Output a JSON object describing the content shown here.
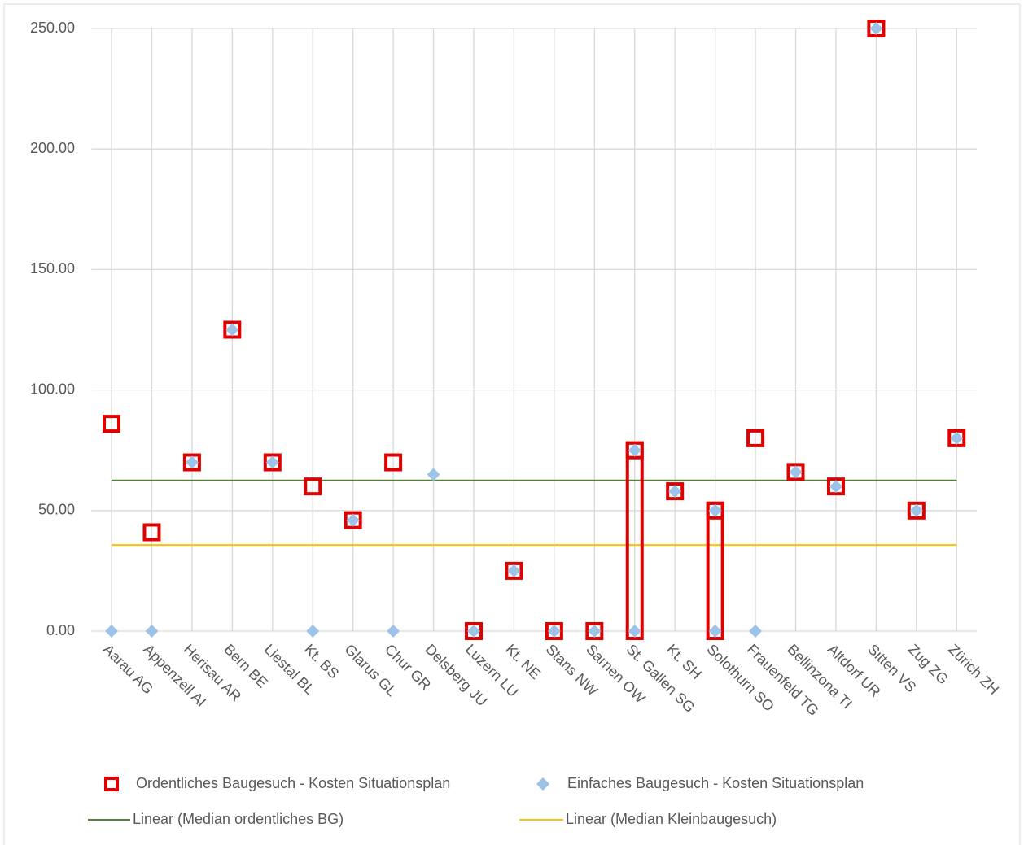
{
  "chart_data": {
    "type": "scatter",
    "categories": [
      "Aarau AG",
      "Appenzell AI",
      "Herisau AR",
      "Bern BE",
      "Liestal BL",
      "Kt. BS",
      "Glarus GL",
      "Chur GR",
      "Delsberg JU",
      "Luzern LU",
      "Kt. NE",
      "Stans NW",
      "Sarnen OW",
      "St. Gallen SG",
      "Kt. SH",
      "Solothurn SO",
      "Frauenfeld TG",
      "Bellinzona TI",
      "Altdorf UR",
      "Sitten VS",
      "Zug ZG",
      "Zürich ZH"
    ],
    "series": [
      {
        "name": "Ordentliches Baugesuch - Kosten Situationsplan",
        "color": "#e00000",
        "marker": "square",
        "values": [
          86,
          41,
          70,
          125,
          70,
          60,
          46,
          70,
          null,
          0,
          25,
          0,
          0,
          75,
          58,
          50,
          80,
          66,
          60,
          250,
          50,
          80
        ]
      },
      {
        "name": "Einfaches Baugesuch - Kosten Situationsplan",
        "color": "#9dc3e6",
        "marker": "diamond",
        "values": [
          0,
          0,
          70,
          125,
          70,
          0,
          46,
          0,
          65,
          0,
          25,
          0,
          0,
          75,
          58,
          50,
          0,
          66,
          60,
          250,
          50,
          80
        ]
      }
    ],
    "highlight_ranges": [
      {
        "category": "St. Gallen SG",
        "low": 0,
        "high": 75
      },
      {
        "category": "Solothurn SO",
        "low": 0,
        "high": 50
      }
    ],
    "reference_lines": [
      {
        "name": "Linear (Median ordentliches BG)",
        "color": "#548235",
        "value": 62.5
      },
      {
        "name": "Linear (Median Kleinbaugesuch)",
        "color": "#ffc000",
        "value": 35.7
      }
    ],
    "ylim": [
      0,
      250
    ],
    "yticks": [
      {
        "value": 0,
        "label": "0.00"
      },
      {
        "value": 50,
        "label": "50.00"
      },
      {
        "value": 100,
        "label": "100.00"
      },
      {
        "value": 150,
        "label": "150.00"
      },
      {
        "value": 200,
        "label": "200.00"
      },
      {
        "value": 250,
        "label": "250.00"
      }
    ],
    "grid": true,
    "legend": "bottom"
  }
}
